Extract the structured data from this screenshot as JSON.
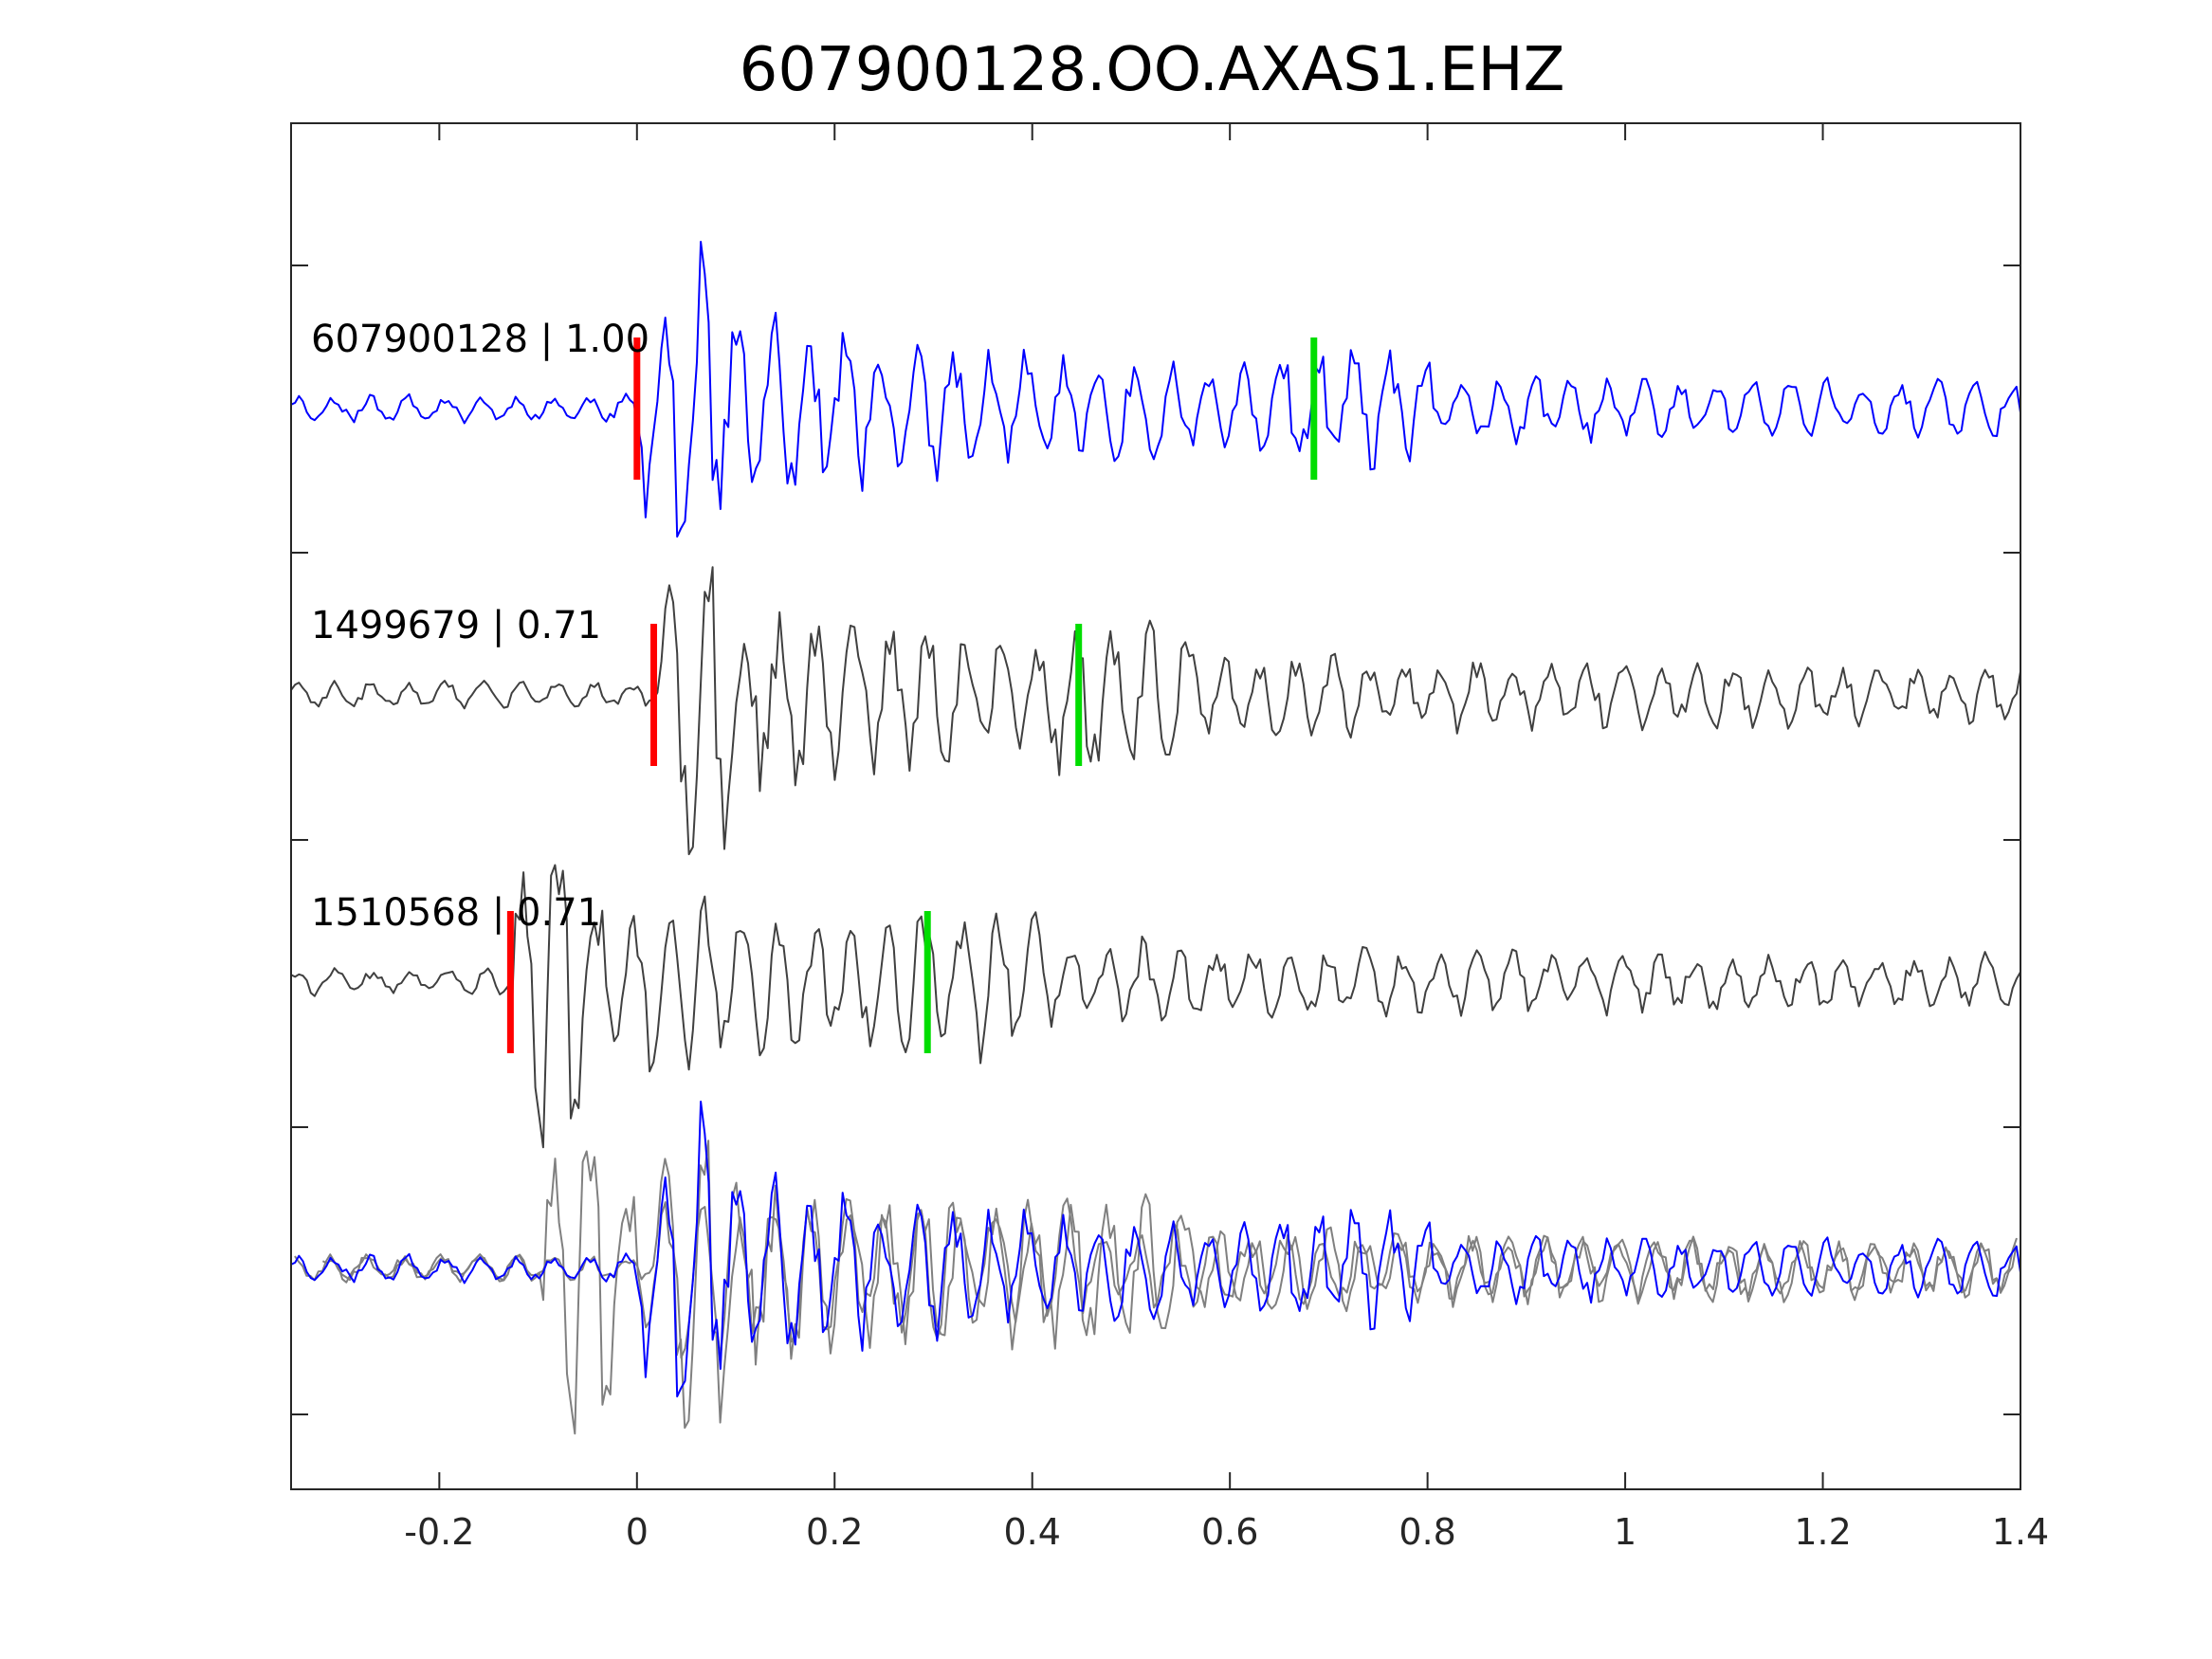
{
  "chart_data": {
    "type": "line",
    "title": "607900128.OO.AXAS1.EHZ",
    "xlabel": "",
    "ylabel": "",
    "xlim": [
      -0.35,
      1.4
    ],
    "x_ticks": [
      -0.2,
      0,
      0.2,
      0.4,
      0.6,
      0.8,
      1,
      1.2,
      1.4
    ],
    "x_tick_labels": [
      "-0.2",
      "0",
      "0.2",
      "0.4",
      "0.6",
      "0.8",
      "1",
      "1.2",
      "1.4"
    ],
    "grid": false,
    "traces": [
      {
        "label": "607900128 | 1.00",
        "color": "#0000ff",
        "p_pick": 0.0,
        "s_pick": 0.685
      },
      {
        "label": "1499679 | 0.71",
        "color": "#404040",
        "p_pick": 0.017,
        "s_pick": 0.447
      },
      {
        "label": "1510568 | 0.71",
        "color": "#404040",
        "p_pick": -0.128,
        "s_pick": 0.294
      }
    ],
    "overlay": {
      "series_colors": [
        "#0000ff",
        "#808080",
        "#808080"
      ]
    },
    "pick_colors": {
      "p": "#ff0000",
      "s": "#00dd00"
    }
  }
}
